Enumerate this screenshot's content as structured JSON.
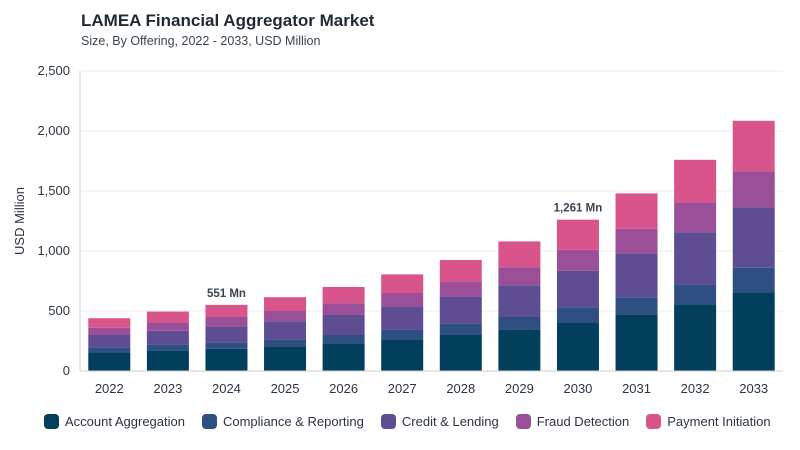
{
  "header": {
    "title": "LAMEA Financial Aggregator Market",
    "subtitle": "Size, By Offering, 2022 - 2033, USD Million"
  },
  "chart_data": {
    "type": "bar",
    "stacked": true,
    "categories": [
      "2022",
      "2023",
      "2024",
      "2025",
      "2026",
      "2027",
      "2028",
      "2029",
      "2030",
      "2031",
      "2032",
      "2033"
    ],
    "ylabel": "USD Million",
    "ylim": [
      0,
      2500
    ],
    "yticks": [
      0,
      500,
      1000,
      1500,
      2000,
      2500
    ],
    "ytick_labels": [
      "0",
      "500",
      "1,000",
      "1,500",
      "2,000",
      "2,500"
    ],
    "grid": true,
    "legend_position": "bottom",
    "series": [
      {
        "name": "Account Aggregation",
        "color": "#013f5c",
        "values": [
          150,
          170,
          185,
          205,
          230,
          265,
          300,
          345,
          405,
          470,
          555,
          655
        ]
      },
      {
        "name": "Compliance & Reporting",
        "color": "#2f4f83",
        "values": [
          45,
          50,
          55,
          60,
          70,
          80,
          95,
          105,
          125,
          145,
          165,
          205
        ]
      },
      {
        "name": "Credit & Lending",
        "color": "#5e4d92",
        "values": [
          105,
          115,
          130,
          150,
          170,
          195,
          225,
          265,
          305,
          365,
          435,
          505
        ]
      },
      {
        "name": "Fraud Detection",
        "color": "#9c4f99",
        "values": [
          60,
          70,
          80,
          85,
          95,
          110,
          125,
          150,
          175,
          205,
          250,
          300
        ]
      },
      {
        "name": "Payment Initiation",
        "color": "#d9548b",
        "values": [
          80,
          90,
          101,
          115,
          135,
          155,
          180,
          215,
          251,
          295,
          355,
          420
        ]
      }
    ],
    "annotations": [
      {
        "category": "2024",
        "text": "551 Mn"
      },
      {
        "category": "2030",
        "text": "1,261 Mn"
      }
    ]
  }
}
